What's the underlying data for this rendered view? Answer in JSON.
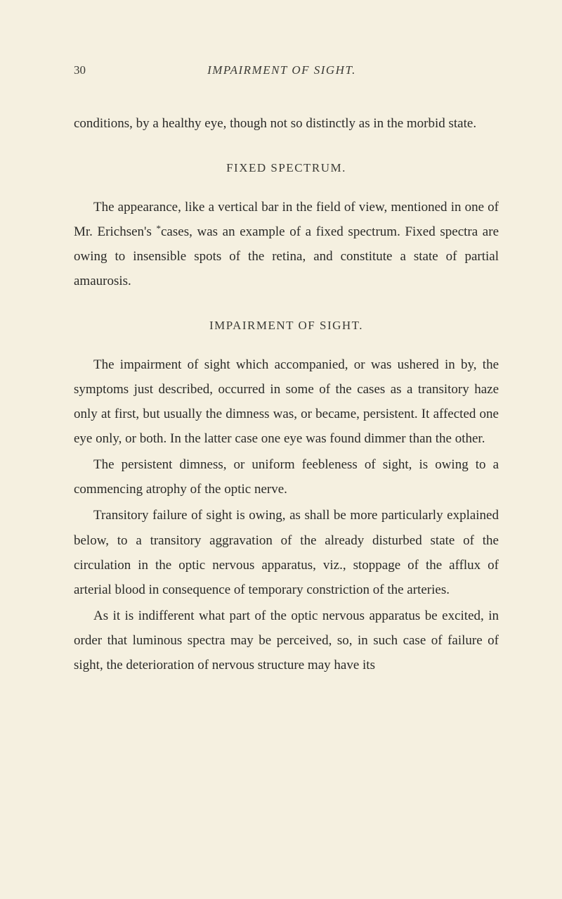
{
  "page": {
    "number": "30",
    "running_title": "IMPAIRMENT OF SIGHT.",
    "background_color": "#f5f0e0",
    "text_color": "#2a2a28",
    "heading_color": "#3a3a35",
    "body_fontsize": 19,
    "heading_fontsize": 17,
    "line_height": 1.85
  },
  "paragraphs": {
    "p1": "conditions, by a healthy eye, though not so distinctly as in the morbid state.",
    "heading1": "FIXED SPECTRUM.",
    "p2a": "The appearance, like a vertical bar in the field of view, mentioned in one of Mr. Erichsen's",
    "p2asterisk": "*",
    "p2b": "cases, was an example of a fixed spectrum. Fixed spectra are owing to insensible spots of the retina, and constitute a state of partial amaurosis.",
    "heading2": "IMPAIRMENT OF SIGHT.",
    "p3": "The impairment of sight which accompanied, or was ushered in by, the symptoms just described, occurred in some of the cases as a transitory haze only at first, but usually the dimness was, or became, persistent. It affected one eye only, or both. In the latter case one eye was found dimmer than the other.",
    "p4": "The persistent dimness, or uniform feebleness of sight, is owing to a commencing atrophy of the optic nerve.",
    "p5": "Transitory failure of sight is owing, as shall be more particularly explained below, to a transitory aggravation of the already disturbed state of the circulation in the optic nervous apparatus, viz., stoppage of the afflux of arterial blood in consequence of temporary constriction of the arteries.",
    "p6": "As it is indifferent what part of the optic nervous apparatus be excited, in order that luminous spectra may be perceived, so, in such case of failure of sight, the deterioration of nervous structure may have its"
  }
}
